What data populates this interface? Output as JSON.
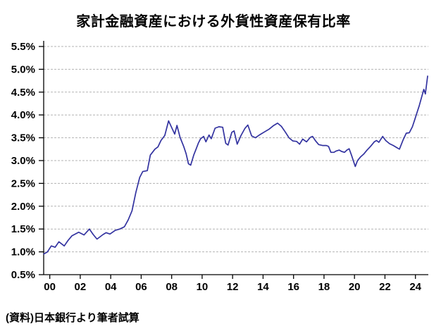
{
  "page": {
    "background": "#ffffff"
  },
  "header": {
    "title": "家計金融資産における外貨性資産保有比率"
  },
  "footer": {
    "source_note": "(資料)日本銀行より筆者試算"
  },
  "colors": {
    "line": "#3333a0",
    "grid": "#b3b3b3",
    "axis": "#000000",
    "text": "#000000"
  },
  "chart_data": {
    "type": "line",
    "title": "家計金融資産における外貨性資産保有比率",
    "source": "(資料)日本銀行より筆者試算",
    "xlabel": "",
    "ylabel": "",
    "legend": "none",
    "grid": "horizontal-dashed",
    "ylim": [
      0.5,
      5.5
    ],
    "y_tick_step": 0.5,
    "y_tick_labels": [
      "0.5%",
      "1.0%",
      "1.5%",
      "2.0%",
      "2.5%",
      "3.0%",
      "3.5%",
      "4.0%",
      "4.5%",
      "5.0%",
      "5.5%"
    ],
    "x_tick_labels": [
      "00",
      "02",
      "04",
      "06",
      "08",
      "10",
      "12",
      "14",
      "16",
      "18",
      "20",
      "22",
      "24"
    ],
    "x_tick_years": [
      2000,
      2002,
      2004,
      2006,
      2008,
      2010,
      2012,
      2014,
      2016,
      2018,
      2020,
      2022,
      2024
    ],
    "x_range": [
      1999.6,
      2024.8
    ],
    "series": [
      {
        "name": "外貨性資産保有比率",
        "unit": "%",
        "color": "#3333a0",
        "points": [
          [
            1999.6,
            0.95
          ],
          [
            1999.85,
            1.0
          ],
          [
            2000.1,
            1.13
          ],
          [
            2000.35,
            1.1
          ],
          [
            2000.6,
            1.22
          ],
          [
            2000.95,
            1.13
          ],
          [
            2001.2,
            1.25
          ],
          [
            2001.45,
            1.35
          ],
          [
            2001.9,
            1.43
          ],
          [
            2002.25,
            1.37
          ],
          [
            2002.6,
            1.5
          ],
          [
            2002.85,
            1.38
          ],
          [
            2003.1,
            1.28
          ],
          [
            2003.5,
            1.38
          ],
          [
            2003.7,
            1.42
          ],
          [
            2003.95,
            1.39
          ],
          [
            2004.3,
            1.47
          ],
          [
            2004.6,
            1.5
          ],
          [
            2004.9,
            1.55
          ],
          [
            2005.15,
            1.7
          ],
          [
            2005.4,
            1.9
          ],
          [
            2005.65,
            2.3
          ],
          [
            2005.9,
            2.63
          ],
          [
            2006.1,
            2.76
          ],
          [
            2006.4,
            2.78
          ],
          [
            2006.6,
            3.12
          ],
          [
            2006.9,
            3.25
          ],
          [
            2007.1,
            3.3
          ],
          [
            2007.3,
            3.44
          ],
          [
            2007.55,
            3.55
          ],
          [
            2007.8,
            3.87
          ],
          [
            2008.05,
            3.69
          ],
          [
            2008.2,
            3.58
          ],
          [
            2008.35,
            3.77
          ],
          [
            2008.55,
            3.51
          ],
          [
            2008.8,
            3.3
          ],
          [
            2008.95,
            3.15
          ],
          [
            2009.1,
            2.93
          ],
          [
            2009.25,
            2.9
          ],
          [
            2009.45,
            3.12
          ],
          [
            2009.6,
            3.25
          ],
          [
            2009.75,
            3.38
          ],
          [
            2009.9,
            3.48
          ],
          [
            2010.1,
            3.53
          ],
          [
            2010.25,
            3.41
          ],
          [
            2010.45,
            3.56
          ],
          [
            2010.6,
            3.48
          ],
          [
            2010.85,
            3.71
          ],
          [
            2011.1,
            3.74
          ],
          [
            2011.35,
            3.73
          ],
          [
            2011.55,
            3.38
          ],
          [
            2011.7,
            3.34
          ],
          [
            2011.95,
            3.62
          ],
          [
            2012.1,
            3.65
          ],
          [
            2012.3,
            3.36
          ],
          [
            2012.55,
            3.55
          ],
          [
            2012.8,
            3.7
          ],
          [
            2013.0,
            3.78
          ],
          [
            2013.25,
            3.54
          ],
          [
            2013.5,
            3.5
          ],
          [
            2013.8,
            3.57
          ],
          [
            2014.1,
            3.63
          ],
          [
            2014.4,
            3.69
          ],
          [
            2014.7,
            3.77
          ],
          [
            2014.95,
            3.82
          ],
          [
            2015.2,
            3.75
          ],
          [
            2015.45,
            3.63
          ],
          [
            2015.7,
            3.5
          ],
          [
            2015.95,
            3.43
          ],
          [
            2016.2,
            3.42
          ],
          [
            2016.4,
            3.36
          ],
          [
            2016.6,
            3.47
          ],
          [
            2016.85,
            3.41
          ],
          [
            2017.1,
            3.51
          ],
          [
            2017.25,
            3.53
          ],
          [
            2017.45,
            3.43
          ],
          [
            2017.65,
            3.35
          ],
          [
            2017.9,
            3.33
          ],
          [
            2018.15,
            3.33
          ],
          [
            2018.3,
            3.31
          ],
          [
            2018.45,
            3.18
          ],
          [
            2018.65,
            3.18
          ],
          [
            2018.8,
            3.21
          ],
          [
            2019.0,
            3.23
          ],
          [
            2019.15,
            3.2
          ],
          [
            2019.35,
            3.18
          ],
          [
            2019.5,
            3.23
          ],
          [
            2019.65,
            3.26
          ],
          [
            2019.8,
            3.12
          ],
          [
            2019.95,
            2.97
          ],
          [
            2020.05,
            2.87
          ],
          [
            2020.2,
            3.0
          ],
          [
            2020.4,
            3.08
          ],
          [
            2020.6,
            3.14
          ],
          [
            2020.8,
            3.22
          ],
          [
            2021.05,
            3.31
          ],
          [
            2021.3,
            3.41
          ],
          [
            2021.45,
            3.44
          ],
          [
            2021.6,
            3.4
          ],
          [
            2021.85,
            3.53
          ],
          [
            2022.05,
            3.44
          ],
          [
            2022.3,
            3.37
          ],
          [
            2022.55,
            3.33
          ],
          [
            2022.8,
            3.28
          ],
          [
            2022.95,
            3.25
          ],
          [
            2023.2,
            3.46
          ],
          [
            2023.4,
            3.6
          ],
          [
            2023.6,
            3.61
          ],
          [
            2023.8,
            3.74
          ],
          [
            2023.95,
            3.89
          ],
          [
            2024.1,
            4.05
          ],
          [
            2024.25,
            4.2
          ],
          [
            2024.4,
            4.38
          ],
          [
            2024.55,
            4.56
          ],
          [
            2024.65,
            4.46
          ],
          [
            2024.8,
            4.85
          ]
        ]
      }
    ]
  }
}
